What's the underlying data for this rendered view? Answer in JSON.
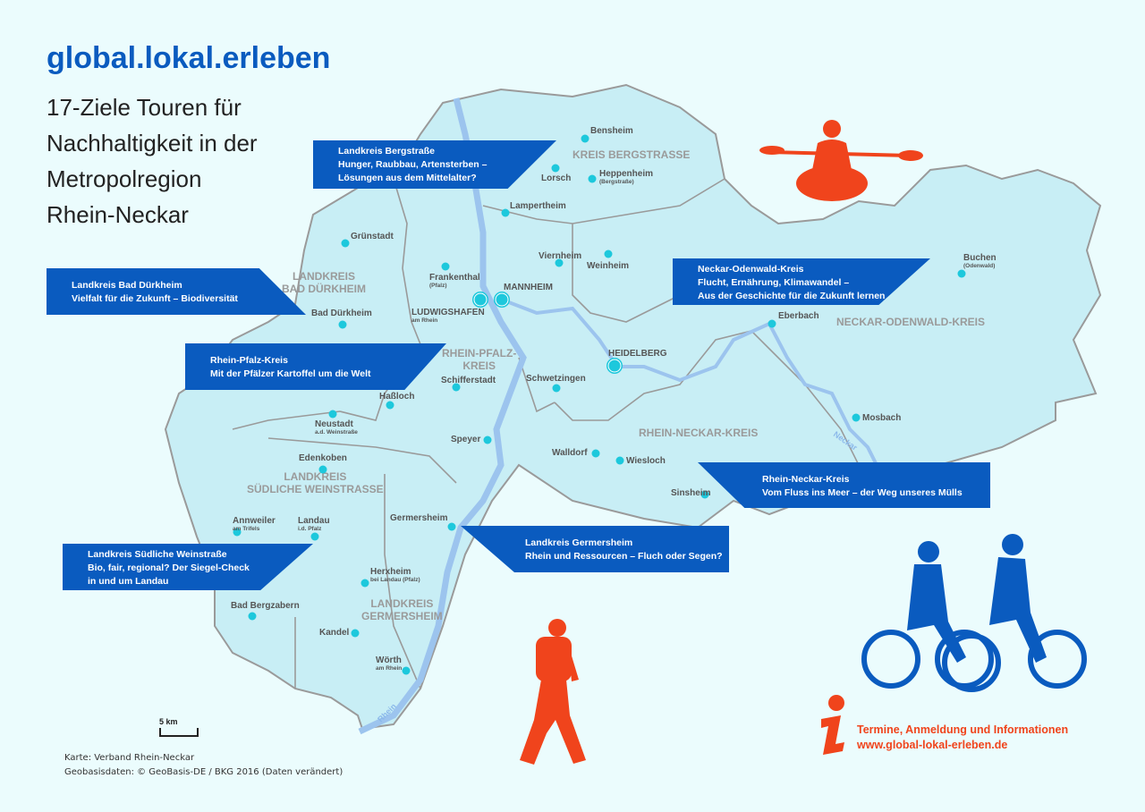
{
  "brand": "global.lokal.erleben",
  "subtitle_lines": [
    "17-Ziele Touren für",
    "Nachhaltigkeit in der",
    "Metropolregion",
    "Rhein-Neckar"
  ],
  "colors": {
    "background": "#ebfcfd",
    "map_fill": "#c8eef5",
    "border": "#9a9a9a",
    "river": "#9cc4ee",
    "banner": "#0a5bbf",
    "accent_orange": "#f0441c",
    "city_dot": "#1dc8dc"
  },
  "regions": [
    "KREIS BERGSTRASSE",
    "LANDKREIS\nBAD DÜRKHEIM",
    "RHEIN-PFALZ-\nKREIS",
    "RHEIN-NECKAR-KREIS",
    "NECKAR-ODENWALD-KREIS",
    "LANDKREIS\nSÜDLICHE WEINSTRASSE",
    "LANDKREIS\nGERMERSHEIM"
  ],
  "cities": [
    {
      "name": "Bensheim"
    },
    {
      "name": "Lorsch"
    },
    {
      "name": "Heppenheim",
      "sub": "(Bergstraße)"
    },
    {
      "name": "Lampertheim"
    },
    {
      "name": "Grünstadt"
    },
    {
      "name": "Viernheim"
    },
    {
      "name": "Weinheim"
    },
    {
      "name": "Frankenthal",
      "sub": "(Pfalz)"
    },
    {
      "name": "LUDWIGSHAFEN",
      "sub": "am Rhein"
    },
    {
      "name": "MANNHEIM"
    },
    {
      "name": "Bad Dürkheim"
    },
    {
      "name": "Eberbach"
    },
    {
      "name": "Buchen",
      "sub": "(Odenwald)"
    },
    {
      "name": "HEIDELBERG"
    },
    {
      "name": "Schwetzingen"
    },
    {
      "name": "Schifferstadt"
    },
    {
      "name": "Haßloch"
    },
    {
      "name": "Neustadt",
      "sub": "a.d. Weinstraße"
    },
    {
      "name": "Mosbach"
    },
    {
      "name": "Speyer"
    },
    {
      "name": "Walldorf"
    },
    {
      "name": "Wiesloch"
    },
    {
      "name": "Edenkoben"
    },
    {
      "name": "Sinsheim"
    },
    {
      "name": "Germersheim"
    },
    {
      "name": "Annweiler",
      "sub": "am Trifels"
    },
    {
      "name": "Landau",
      "sub": "i.d. Pfalz"
    },
    {
      "name": "Herxheim",
      "sub": "bei Landau (Pfalz)"
    },
    {
      "name": "Bad Bergzabern"
    },
    {
      "name": "Kandel"
    },
    {
      "name": "Wörth",
      "sub": "am Rhein"
    }
  ],
  "rivers": [
    "Rhein",
    "Neckar"
  ],
  "tours": [
    {
      "lines": [
        "Landkreis Bergstraße",
        "Hunger, Raubbau, Artensterben –",
        "Lösungen aus dem Mittelalter?"
      ]
    },
    {
      "lines": [
        "Landkreis Bad Dürkheim",
        "Vielfalt für die Zukunft – Biodiversität"
      ]
    },
    {
      "lines": [
        "Rhein-Pfalz-Kreis",
        "Mit der Pfälzer Kartoffel um die Welt"
      ]
    },
    {
      "lines": [
        "Neckar-Odenwald-Kreis",
        "Flucht, Ernährung, Klimawandel –",
        "Aus der Geschichte für die Zukunft lernen"
      ]
    },
    {
      "lines": [
        "Rhein-Neckar-Kreis",
        "Vom Fluss ins Meer – der Weg unseres Mülls"
      ]
    },
    {
      "lines": [
        "Landkreis Germersheim",
        "Rhein und Ressourcen – Fluch oder Segen?"
      ]
    },
    {
      "lines": [
        "Landkreis Südliche Weinstraße",
        "Bio, fair, regional? Der Siegel-Check",
        "in und um Landau"
      ]
    }
  ],
  "scale_label": "5 km",
  "info": {
    "icon": "info-icon",
    "line1": "Termine, Anmeldung und Informationen",
    "line2": "www.global-lokal-erleben.de"
  },
  "credits": [
    "Karte: Verband Rhein-Neckar",
    "Geobasisdaten: © GeoBasis-DE / BKG 2016 (Daten verändert)"
  ],
  "illustrations": [
    "kayaker-icon",
    "hiker-icon",
    "cyclists-icon"
  ]
}
